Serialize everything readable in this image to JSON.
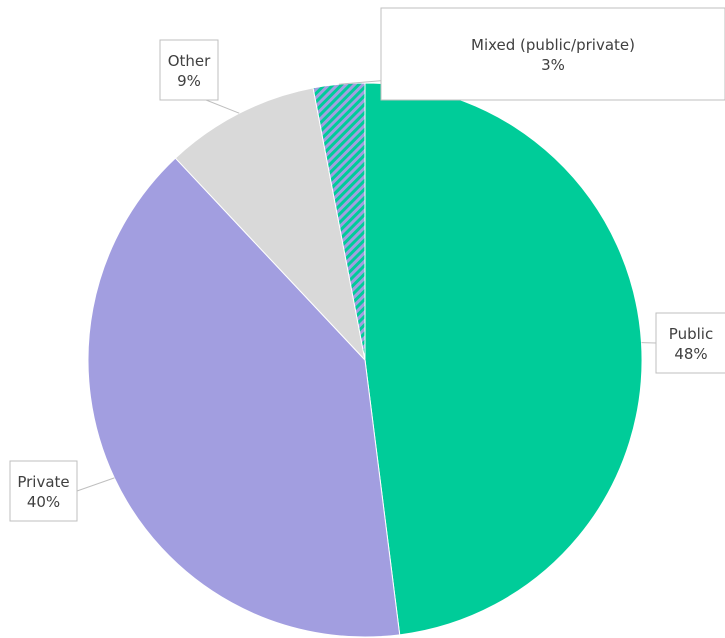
{
  "chart_data": {
    "type": "pie",
    "title": "",
    "slices": [
      {
        "label": "Public",
        "value": 48,
        "display": "48%",
        "color": "#00CC99",
        "pattern": "solid"
      },
      {
        "label": "Private",
        "value": 40,
        "display": "40%",
        "color": "#A29EE0",
        "pattern": "solid"
      },
      {
        "label": "Other",
        "value": 9,
        "display": "9%",
        "color": "#D9D9D9",
        "pattern": "solid"
      },
      {
        "label": "Mixed (public/private)",
        "value": 3,
        "display": "3%",
        "color": "#00CC99",
        "color2": "#A29EE0",
        "pattern": "diagonal-stripes"
      }
    ],
    "legend": "none",
    "data_labels": "callouts"
  }
}
